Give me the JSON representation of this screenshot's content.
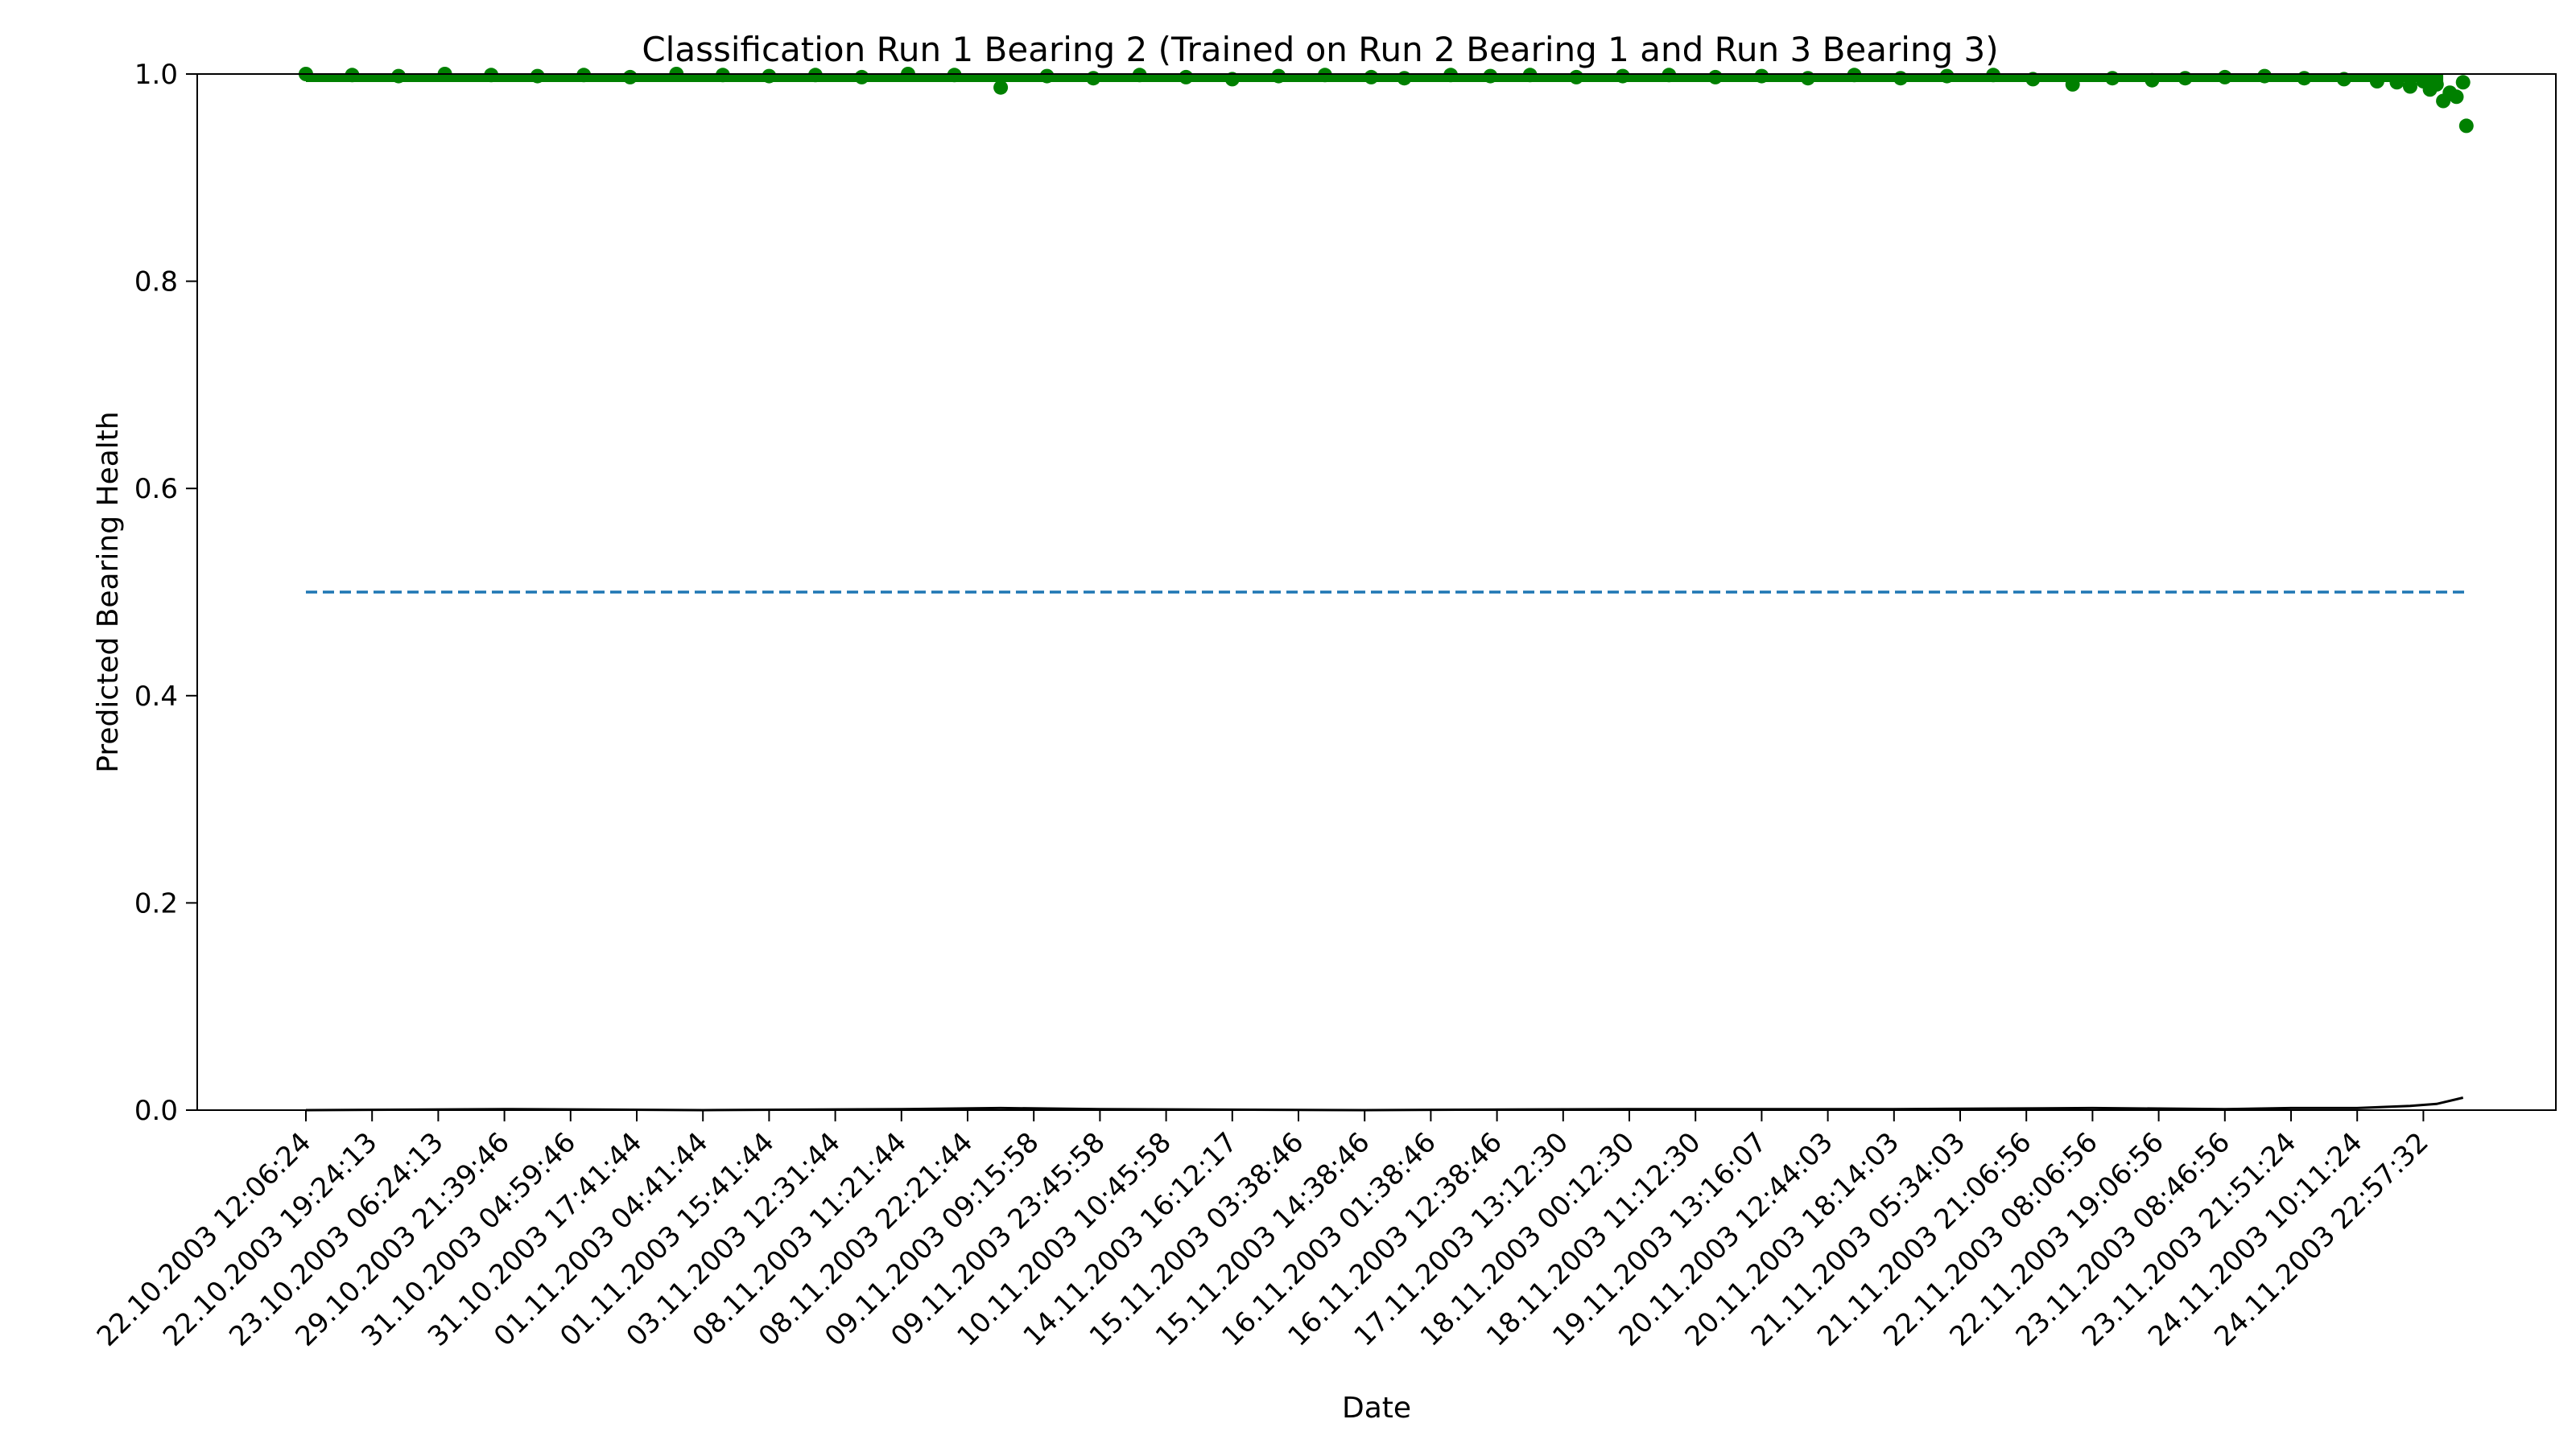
{
  "chart_data": {
    "type": "scatter",
    "title": "Classification Run 1 Bearing 2 (Trained on Run 2 Bearing 1 and Run 3 Bearing 3)",
    "xlabel": "Date",
    "ylabel": "Predicted Bearing Health",
    "ylim": [
      0,
      1.0
    ],
    "yticks": [
      "0.0",
      "0.2",
      "0.4",
      "0.6",
      "0.8",
      "1.0"
    ],
    "x_tick_labels": [
      "22.10.2003 12:06:24",
      "22.10.2003 19:24:13",
      "23.10.2003 06:24:13",
      "29.10.2003 21:39:46",
      "31.10.2003 04:59:46",
      "31.10.2003 17:41:44",
      "01.11.2003 04:41:44",
      "01.11.2003 15:41:44",
      "03.11.2003 12:31:44",
      "08.11.2003 11:21:44",
      "08.11.2003 22:21:44",
      "09.11.2003 09:15:58",
      "09.11.2003 23:45:58",
      "10.11.2003 10:45:58",
      "14.11.2003 16:12:17",
      "15.11.2003 03:38:46",
      "15.11.2003 14:38:46",
      "16.11.2003 01:38:46",
      "16.11.2003 12:38:46",
      "17.11.2003 13:12:30",
      "18.11.2003 00:12:30",
      "18.11.2003 11:12:30",
      "19.11.2003 13:16:07",
      "20.11.2003 12:44:03",
      "20.11.2003 18:14:03",
      "21.11.2003 05:34:03",
      "21.11.2003 21:06:56",
      "22.11.2003 08:06:56",
      "22.11.2003 19:06:56",
      "23.11.2003 08:46:56",
      "23.11.2003 21:51:24",
      "24.11.2003 10:11:24",
      "24.11.2003 22:57:32"
    ],
    "threshold": 0.5,
    "grid": false,
    "colors": {
      "healthy_points": "#008000",
      "faulty_line": "#000000",
      "threshold_line": "#1f77b4"
    },
    "series": [
      {
        "points": [
          [
            0.0,
            1.0
          ],
          [
            0.7,
            0.999
          ],
          [
            1.4,
            0.998
          ],
          [
            2.1,
            1.0
          ],
          [
            2.8,
            0.999
          ],
          [
            3.5,
            0.998
          ],
          [
            4.2,
            0.999
          ],
          [
            4.9,
            0.997
          ],
          [
            5.6,
            1.0
          ],
          [
            6.3,
            0.999
          ],
          [
            7.0,
            0.998
          ],
          [
            7.7,
            0.999
          ],
          [
            8.4,
            0.997
          ],
          [
            9.1,
            1.0
          ],
          [
            9.8,
            0.999
          ],
          [
            10.5,
            0.987
          ],
          [
            11.2,
            0.998
          ],
          [
            11.9,
            0.996
          ],
          [
            12.6,
            0.999
          ],
          [
            13.3,
            0.997
          ],
          [
            14.0,
            0.995
          ],
          [
            14.7,
            0.998
          ],
          [
            15.4,
            0.999
          ],
          [
            16.1,
            0.997
          ],
          [
            16.6,
            0.996
          ],
          [
            17.3,
            0.999
          ],
          [
            17.9,
            0.998
          ],
          [
            18.5,
            0.999
          ],
          [
            19.2,
            0.997
          ],
          [
            19.9,
            0.998
          ],
          [
            20.6,
            0.999
          ],
          [
            21.3,
            0.997
          ],
          [
            22.0,
            0.998
          ],
          [
            22.7,
            0.996
          ],
          [
            23.4,
            0.999
          ],
          [
            24.1,
            0.996
          ],
          [
            24.8,
            0.998
          ],
          [
            25.5,
            0.999
          ],
          [
            26.1,
            0.995
          ],
          [
            26.7,
            0.99
          ],
          [
            27.3,
            0.996
          ],
          [
            27.9,
            0.994
          ],
          [
            28.4,
            0.996
          ],
          [
            29.0,
            0.997
          ],
          [
            29.6,
            0.998
          ],
          [
            30.2,
            0.996
          ],
          [
            30.8,
            0.995
          ],
          [
            31.3,
            0.993
          ],
          [
            31.6,
            0.992
          ],
          [
            31.8,
            0.988
          ],
          [
            32.0,
            0.993
          ],
          [
            32.1,
            0.985
          ],
          [
            32.2,
            0.99
          ],
          [
            32.3,
            0.974
          ],
          [
            32.4,
            0.982
          ],
          [
            32.5,
            0.978
          ],
          [
            32.6,
            0.992
          ],
          [
            32.65,
            0.95
          ]
        ]
      },
      {
        "points": [
          [
            0.0,
            0.0
          ],
          [
            3.0,
            0.001
          ],
          [
            6.0,
            0.0
          ],
          [
            9.0,
            0.001
          ],
          [
            10.5,
            0.002
          ],
          [
            12.0,
            0.001
          ],
          [
            16.0,
            0.0
          ],
          [
            20.0,
            0.001
          ],
          [
            24.0,
            0.001
          ],
          [
            27.0,
            0.002
          ],
          [
            29.0,
            0.001
          ],
          [
            30.0,
            0.002
          ],
          [
            31.0,
            0.002
          ],
          [
            31.8,
            0.004
          ],
          [
            32.2,
            0.006
          ],
          [
            32.6,
            0.012
          ]
        ]
      }
    ]
  }
}
